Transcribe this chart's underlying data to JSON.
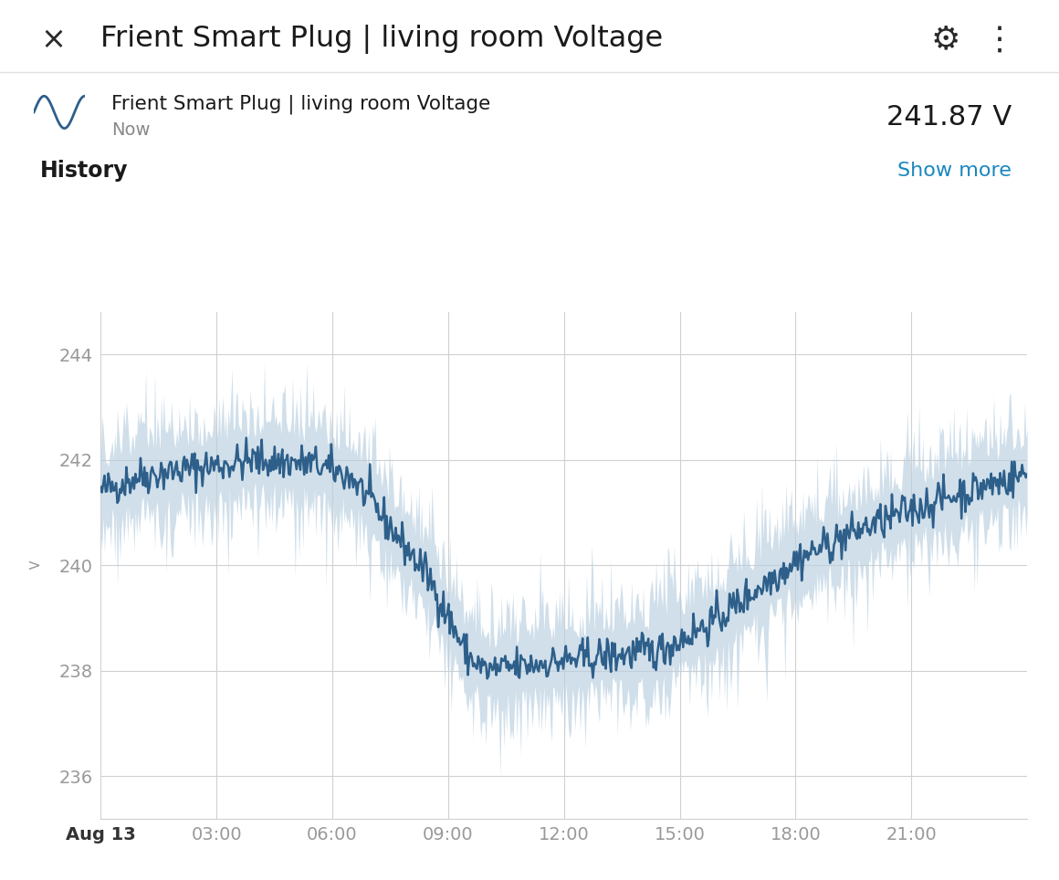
{
  "title": "Frient Smart Plug | living room Voltage",
  "legend_label": "Frient Smart Plug | living room Voltage",
  "legend_sublabel": "Now",
  "current_value": "241.87 V",
  "history_label": "History",
  "show_more_label": "Show more",
  "ylabel": "V",
  "yticks": [
    236,
    238,
    240,
    242,
    244
  ],
  "ylim": [
    235.2,
    244.8
  ],
  "xtick_labels": [
    "Aug 13",
    "03:00",
    "06:00",
    "09:00",
    "12:00",
    "15:00",
    "18:00",
    "21:00"
  ],
  "background_color": "#ffffff",
  "plot_bg_color": "#ffffff",
  "line_color": "#2d5f8a",
  "band_color": "#b8cfe0",
  "grid_color": "#d0d0d0",
  "title_color": "#1a1a1a",
  "axis_label_color": "#999999",
  "history_color": "#1a1a1a",
  "show_more_color": "#1a87c0"
}
